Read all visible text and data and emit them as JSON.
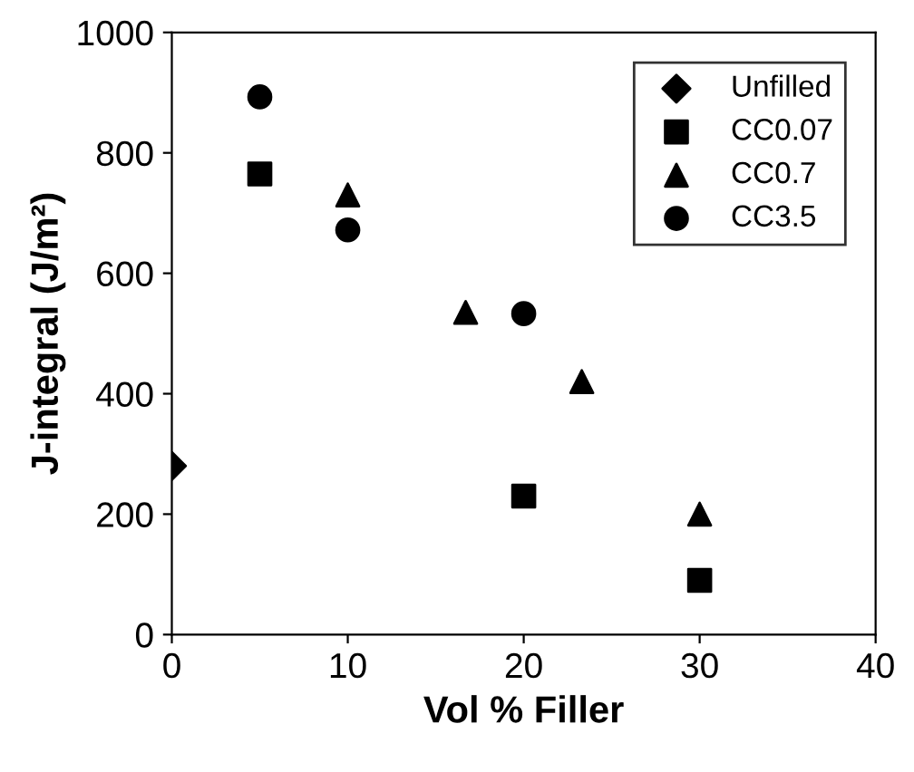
{
  "chart_data": {
    "type": "scatter",
    "xlabel": "Vol % Filler",
    "ylabel": "J-integral (J/m²)",
    "xlim": [
      0,
      40
    ],
    "xticks": [
      0,
      10,
      20,
      30,
      40
    ],
    "ylim": [
      0,
      1000
    ],
    "yticks": [
      0,
      200,
      400,
      600,
      800,
      1000
    ],
    "grid": false,
    "legend": "top right",
    "series": [
      {
        "name": "Unfilled",
        "color": "#000000",
        "marker": "diamond",
        "x": [
          0
        ],
        "values": [
          280
        ]
      },
      {
        "name": "CC0.07",
        "color": "#000000",
        "marker": "square",
        "x": [
          5,
          20,
          30
        ],
        "values": [
          765,
          230,
          90
        ]
      },
      {
        "name": "CC0.7",
        "color": "#000000",
        "marker": "triangle",
        "x": [
          10,
          16.7,
          23.3,
          30
        ],
        "values": [
          730,
          535,
          420,
          200
        ]
      },
      {
        "name": "CC3.5",
        "color": "#000000",
        "marker": "circle",
        "x": [
          5,
          10,
          20
        ],
        "values": [
          893,
          672,
          533
        ]
      }
    ]
  }
}
